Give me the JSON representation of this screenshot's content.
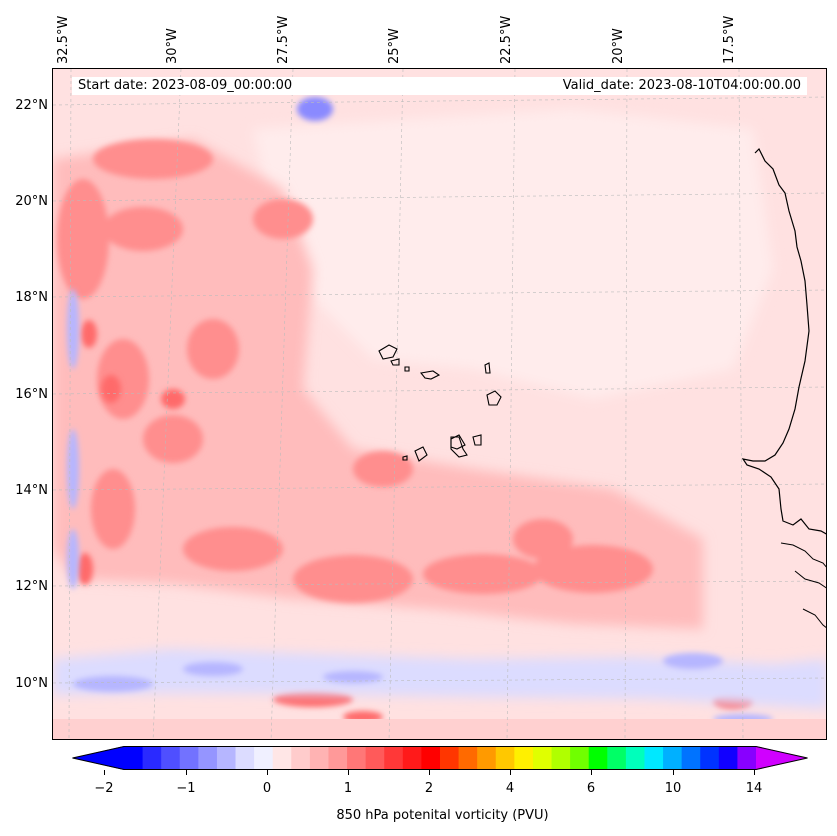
{
  "map": {
    "longitude_labels": [
      "32.5°W",
      "30°W",
      "27.5°W",
      "25°W",
      "22.5°W",
      "20°W",
      "17.5°W"
    ],
    "latitude_labels": [
      "22°N",
      "20°N",
      "18°N",
      "16°N",
      "14°N",
      "12°N",
      "10°N"
    ],
    "start_date": "Start date: 2023-08-09_00:00:00",
    "valid_date": "Valid_date: 2023-08-10T04:00:00.00",
    "field": "850 hPa potenital vorticity (PVU)"
  },
  "colorbar": {
    "label": "850 hPa potenital vorticity (PVU)",
    "tick_labels": [
      "−2",
      "−1",
      "0",
      "1",
      "2",
      "4",
      "6",
      "10",
      "14"
    ],
    "colors": [
      "#0000ff",
      "#2a2aff",
      "#4f4fff",
      "#7272ff",
      "#9595ff",
      "#b6b6ff",
      "#dcdcff",
      "#f0f0ff",
      "#ffe6e6",
      "#ffcccc",
      "#ffb3b3",
      "#ff9999",
      "#ff7777",
      "#ff5a5a",
      "#ff3838",
      "#ff1a1a",
      "#ff0000",
      "#ff3600",
      "#ff6a00",
      "#ff9a00",
      "#ffc800",
      "#fff000",
      "#e0ff00",
      "#b0ff00",
      "#70ff00",
      "#00ff00",
      "#00ff66",
      "#00ffbb",
      "#00e8ff",
      "#00b0ff",
      "#0073ff",
      "#0033ff",
      "#1100ff",
      "#8800ff"
    ],
    "under_color": "#0000ff",
    "over_color": "#d000ff"
  }
}
